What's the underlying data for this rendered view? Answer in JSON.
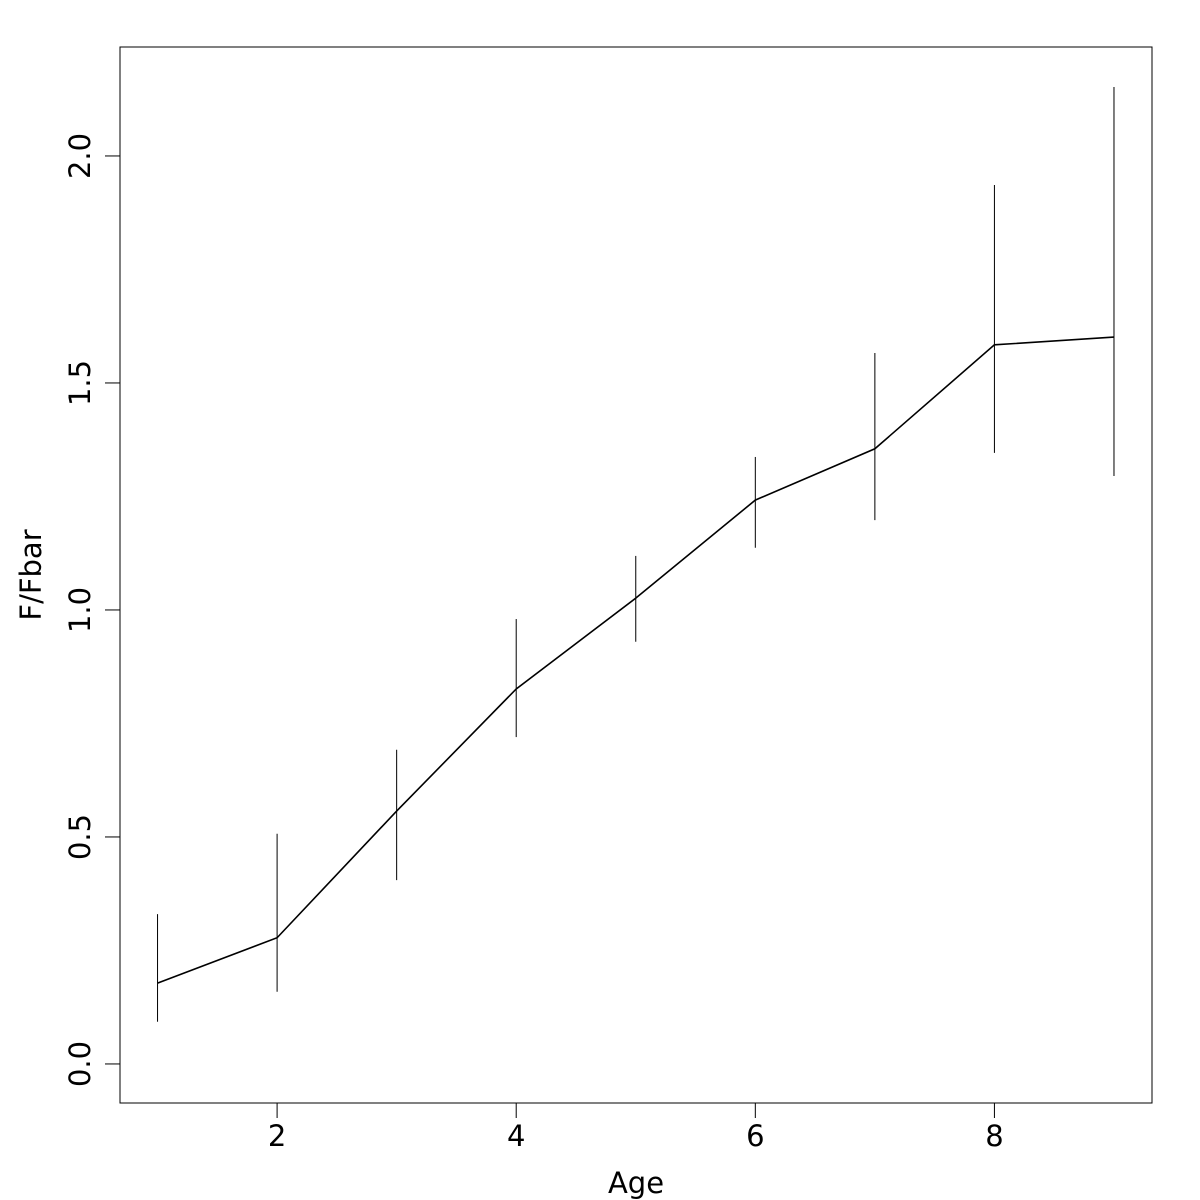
{
  "chart_data": {
    "type": "line",
    "x_label": "Age",
    "y_label": "F/Fbar",
    "x": [
      1,
      2,
      3,
      4,
      5,
      6,
      7,
      8,
      9
    ],
    "values": [
      0.178,
      0.278,
      0.557,
      0.826,
      1.026,
      1.242,
      1.355,
      1.584,
      1.601
    ],
    "lower": [
      0.093,
      0.159,
      0.405,
      0.72,
      0.93,
      1.137,
      1.198,
      1.346,
      1.295
    ],
    "upper": [
      0.33,
      0.507,
      0.692,
      0.98,
      1.119,
      1.337,
      1.566,
      1.936,
      2.152
    ],
    "color": "#000000",
    "xlim": [
      0.686,
      9.318
    ],
    "ylim": [
      -0.086,
      2.24
    ],
    "xticks": [
      2,
      4,
      6,
      8
    ],
    "yticks": [
      {
        "value": 0,
        "label": "0.0"
      },
      0.5,
      {
        "value": 1,
        "label": "1.0"
      },
      1.5,
      {
        "value": 2,
        "label": "2.0"
      }
    ]
  }
}
